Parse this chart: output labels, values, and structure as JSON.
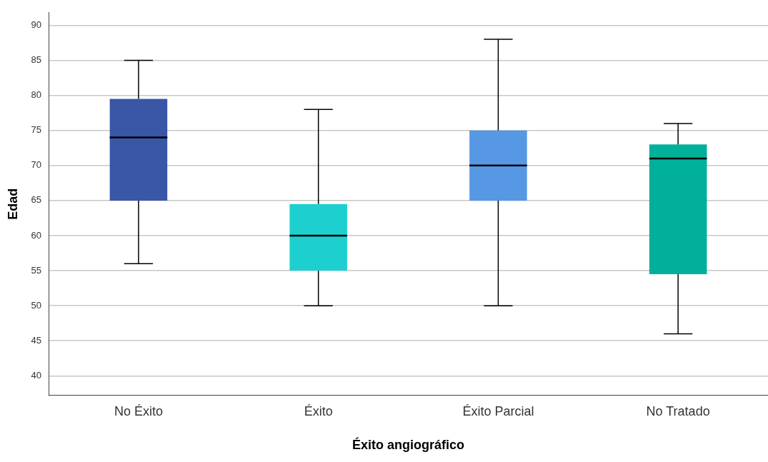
{
  "chart_data": {
    "type": "box",
    "xlabel": "Éxito angiográfico",
    "ylabel": "Edad",
    "categories": [
      "No Éxito",
      "Éxito",
      "Éxito Parcial",
      "No Tratado"
    ],
    "boxes": [
      {
        "low": 56,
        "q1": 65,
        "median": 74,
        "q3": 79.5,
        "high": 85
      },
      {
        "low": 50,
        "q1": 55,
        "median": 60,
        "q3": 64.5,
        "high": 78
      },
      {
        "low": 50,
        "q1": 65,
        "median": 70,
        "q3": 75,
        "high": 88
      },
      {
        "low": 46,
        "q1": 54.5,
        "median": 71,
        "q3": 73,
        "high": 76
      }
    ],
    "colors": [
      "#3a56a6",
      "#1ecfcf",
      "#5698e3",
      "#00b09b"
    ],
    "ylim": [
      37.2,
      91.8
    ],
    "yticks": [
      40,
      45,
      50,
      55,
      60,
      65,
      70,
      75,
      80,
      85,
      90
    ],
    "grid": "y",
    "legend": false
  }
}
